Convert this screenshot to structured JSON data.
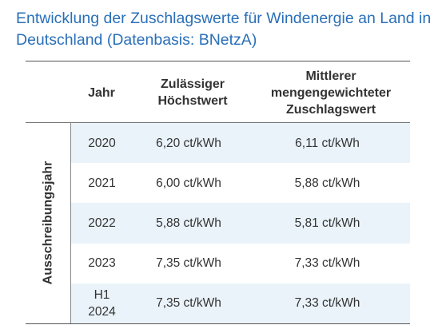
{
  "title": "Entwicklung der Zuschlagswerte für Windenergie an Land in Deutschland (Datenbasis: BNetzA)",
  "headers": {
    "jahr": "Jahr",
    "hoechstwert": "Zulässiger Höchstwert",
    "zuschlagswert": "Mittlerer mengengewichteter Zuschlagswert"
  },
  "side_label": "Ausschreibungsjahr",
  "rows": [
    {
      "jahr": "2020",
      "hoechstwert": "6,20 ct/kWh",
      "zuschlagswert": "6,11 ct/kWh"
    },
    {
      "jahr": "2021",
      "hoechstwert": "6,00 ct/kWh",
      "zuschlagswert": "5,88 ct/kWh"
    },
    {
      "jahr": "2022",
      "hoechstwert": "5,88 ct/kWh",
      "zuschlagswert": "5,81 ct/kWh"
    },
    {
      "jahr": "2023",
      "hoechstwert": "7,35 ct/kWh",
      "zuschlagswert": "7,33 ct/kWh"
    },
    {
      "jahr": "H1 2024",
      "hoechstwert": "7,35 ct/kWh",
      "zuschlagswert": "7,33 ct/kWh"
    }
  ],
  "colors": {
    "title": "#2a6fb8",
    "row_shade": "#eaf3fa",
    "text": "#333333"
  }
}
